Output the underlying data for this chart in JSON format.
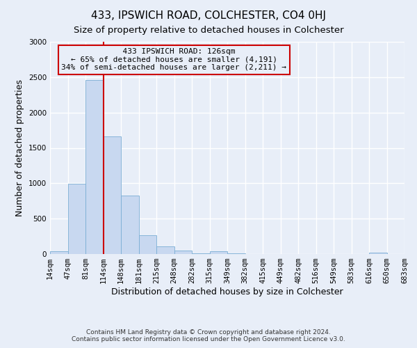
{
  "title": "433, IPSWICH ROAD, COLCHESTER, CO4 0HJ",
  "subtitle": "Size of property relative to detached houses in Colchester",
  "xlabel": "Distribution of detached houses by size in Colchester",
  "ylabel": "Number of detached properties",
  "footer_line1": "Contains HM Land Registry data © Crown copyright and database right 2024.",
  "footer_line2": "Contains public sector information licensed under the Open Government Licence v3.0.",
  "annotation_line1": "433 IPSWICH ROAD: 126sqm",
  "annotation_line2": "← 65% of detached houses are smaller (4,191)",
  "annotation_line3": "34% of semi-detached houses are larger (2,211) →",
  "bar_heights": [
    40,
    990,
    2460,
    1660,
    830,
    265,
    110,
    45,
    5,
    40,
    5,
    0,
    0,
    0,
    0,
    0,
    0,
    0,
    15,
    0
  ],
  "categories": [
    "14sqm",
    "47sqm",
    "81sqm",
    "114sqm",
    "148sqm",
    "181sqm",
    "215sqm",
    "248sqm",
    "282sqm",
    "315sqm",
    "349sqm",
    "382sqm",
    "415sqm",
    "449sqm",
    "482sqm",
    "516sqm",
    "549sqm",
    "583sqm",
    "616sqm",
    "650sqm",
    "683sqm"
  ],
  "bar_color": "#c8d8f0",
  "bar_edge_color": "#7aadd4",
  "vline_x": 3.0,
  "vline_color": "#cc0000",
  "ylim": [
    0,
    3000
  ],
  "yticks": [
    0,
    500,
    1000,
    1500,
    2000,
    2500,
    3000
  ],
  "annotation_box_color": "#cc0000",
  "background_color": "#e8eef8",
  "grid_color": "#ffffff",
  "title_fontsize": 11,
  "subtitle_fontsize": 9.5,
  "axis_label_fontsize": 9,
  "tick_fontsize": 7.5,
  "footer_fontsize": 6.5
}
